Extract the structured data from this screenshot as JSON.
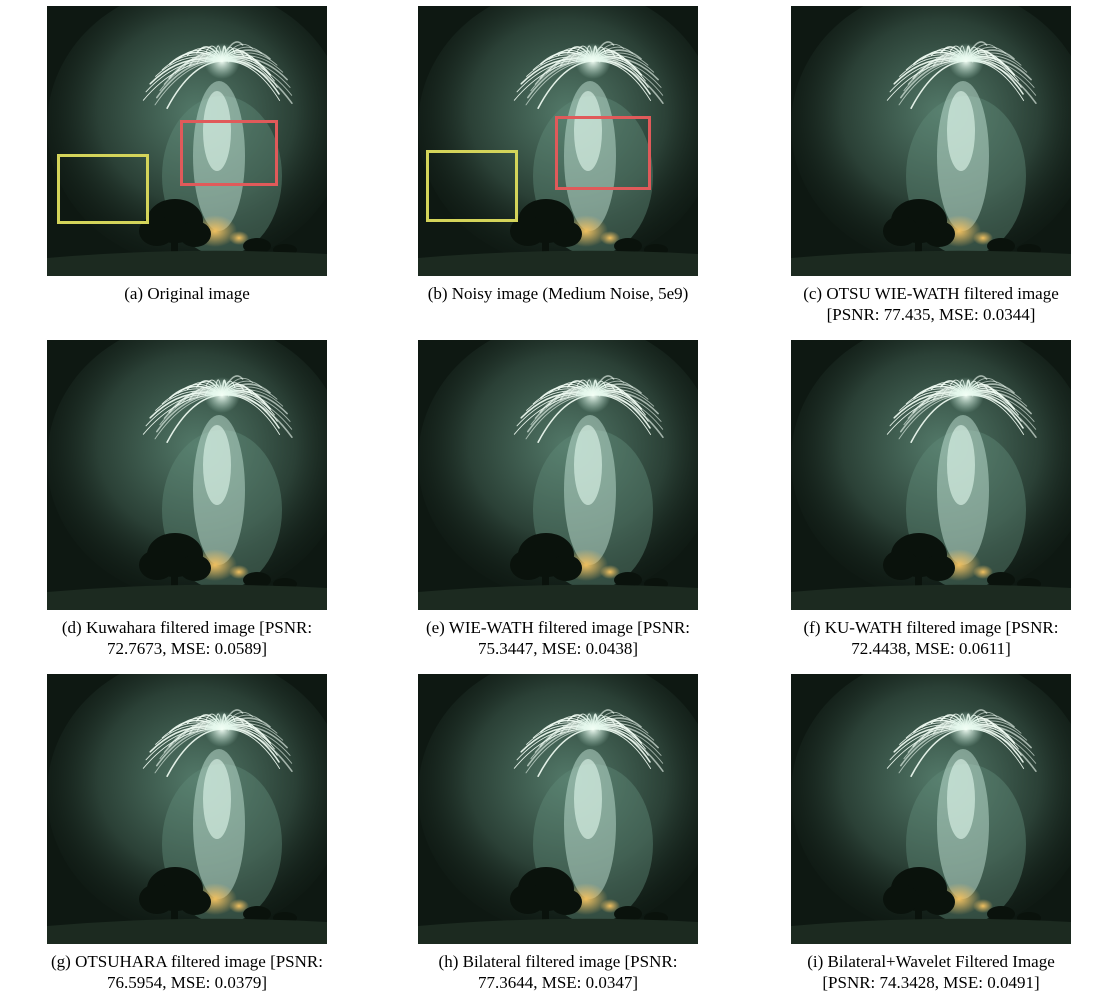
{
  "figure": {
    "panels": [
      {
        "id": "a",
        "caption_lines": [
          "(a) Original image"
        ],
        "has_boxes": true
      },
      {
        "id": "b",
        "caption_lines": [
          "(b) Noisy image (Medium Noise, 5e9)"
        ],
        "has_boxes": true
      },
      {
        "id": "c",
        "caption_lines": [
          "(c) OTSU WIE-WATH filtered image",
          "[PSNR: 77.435, MSE: 0.0344]"
        ],
        "has_boxes": false
      },
      {
        "id": "d",
        "caption_lines": [
          "(d) Kuwahara filtered image [PSNR:",
          "72.7673, MSE: 0.0589]"
        ],
        "has_boxes": false
      },
      {
        "id": "e",
        "caption_lines": [
          "(e) WIE-WATH filtered image [PSNR:",
          "75.3447, MSE: 0.0438]"
        ],
        "has_boxes": false
      },
      {
        "id": "f",
        "caption_lines": [
          "(f) KU-WATH filtered image [PSNR:",
          "72.4438, MSE: 0.0611]"
        ],
        "has_boxes": false
      },
      {
        "id": "g",
        "caption_lines": [
          "(g) OTSUHARA filtered image [PSNR:",
          "76.5954, MSE: 0.0379]"
        ],
        "has_boxes": false
      },
      {
        "id": "h",
        "caption_lines": [
          "(h) Bilateral filtered image [PSNR:",
          "77.3644, MSE: 0.0347]"
        ],
        "has_boxes": false
      },
      {
        "id": "i",
        "caption_lines": [
          "(i) Bilateral+Wavelet Filtered Image",
          "[PSNR: 74.3428, MSE: 0.0491]"
        ],
        "has_boxes": false
      }
    ],
    "colors": {
      "sky": "#0e1812",
      "smoke": "#5f8a78",
      "burst": "#f4fff6",
      "glow": "#f0c060",
      "tree": "#0a120c",
      "ground": "#1c2a20",
      "box_red": "#e05a5a",
      "box_yellow": "#d4d45a"
    }
  }
}
